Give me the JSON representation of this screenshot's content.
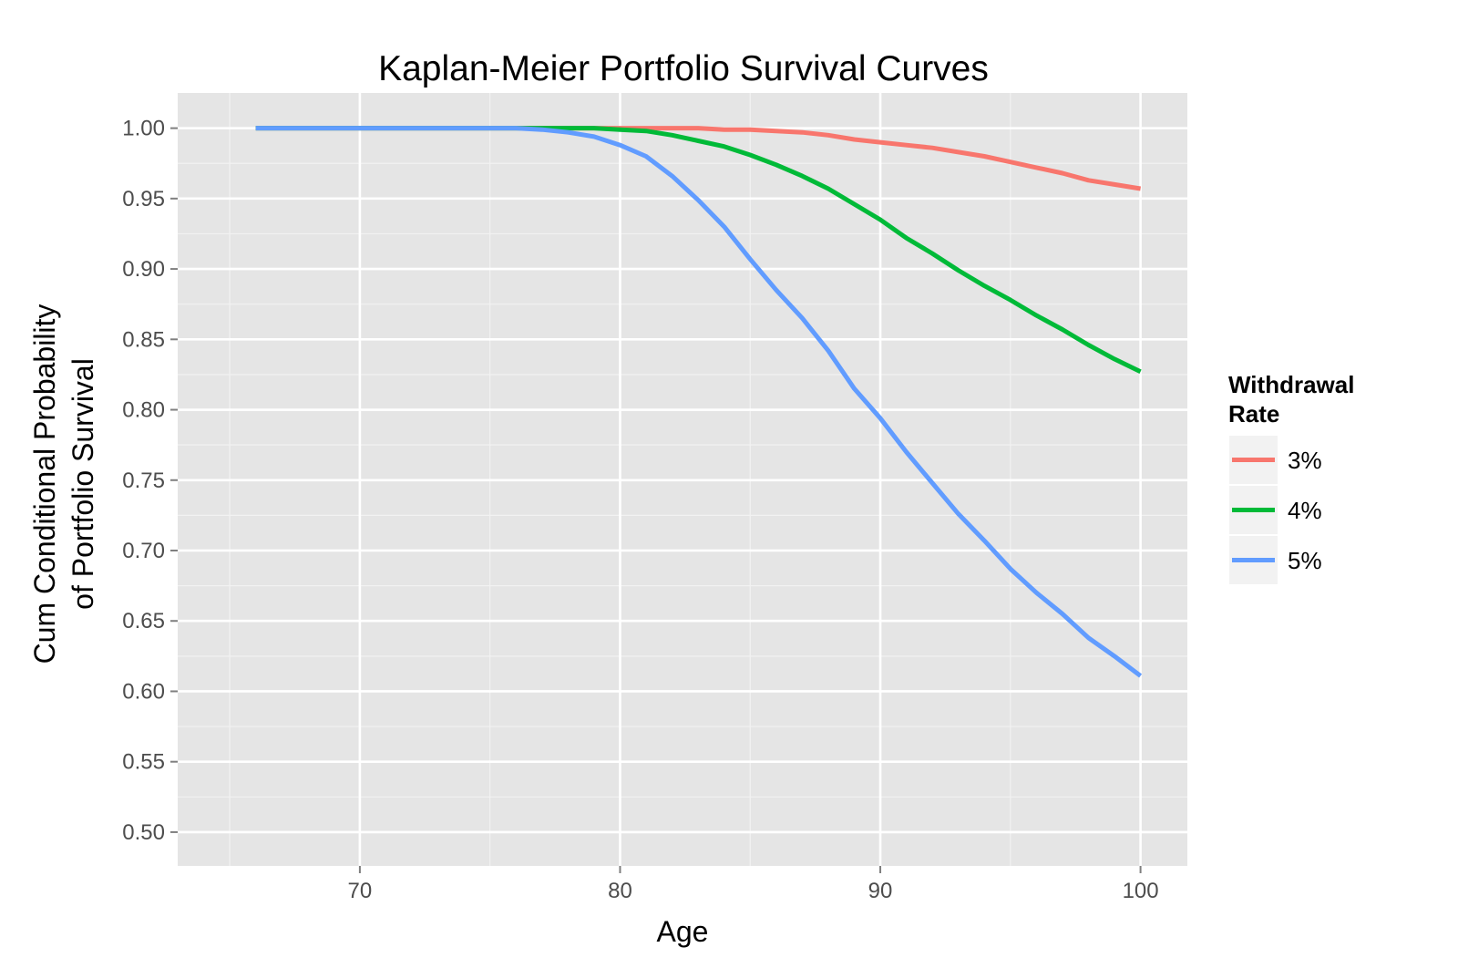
{
  "chart_data": {
    "type": "line",
    "title": "Kaplan-Meier Portfolio Survival Curves",
    "xlabel": "Age",
    "ylabel_lines": [
      "Cum Conditional Probability",
      "of Portfolio Survival"
    ],
    "xlim": [
      63,
      101.8
    ],
    "ylim": [
      0.476,
      1.025
    ],
    "x_ticks": [
      70,
      80,
      90,
      100
    ],
    "x_tick_labels": [
      "70",
      "80",
      "90",
      "100"
    ],
    "y_ticks": [
      0.5,
      0.55,
      0.6,
      0.65,
      0.7,
      0.75,
      0.8,
      0.85,
      0.9,
      0.95,
      1.0
    ],
    "y_tick_labels": [
      "0.50",
      "0.55",
      "0.60",
      "0.65",
      "0.70",
      "0.75",
      "0.80",
      "0.85",
      "0.90",
      "0.95",
      "1.00"
    ],
    "grid": true,
    "panel_background": "#e5e5e5",
    "legend": {
      "title_lines": [
        "Withdrawal",
        "Rate"
      ],
      "position": "right"
    },
    "x": [
      66,
      67,
      68,
      69,
      70,
      71,
      72,
      73,
      74,
      75,
      76,
      77,
      78,
      79,
      80,
      81,
      82,
      83,
      84,
      85,
      86,
      87,
      88,
      89,
      90,
      91,
      92,
      93,
      94,
      95,
      96,
      97,
      98,
      99,
      100
    ],
    "series": [
      {
        "name": "3%",
        "color": "#f8766d",
        "values": [
          1.0,
          1.0,
          1.0,
          1.0,
          1.0,
          1.0,
          1.0,
          1.0,
          1.0,
          1.0,
          1.0,
          1.0,
          1.0,
          1.0,
          1.0,
          1.0,
          1.0,
          1.0,
          0.999,
          0.999,
          0.998,
          0.997,
          0.995,
          0.992,
          0.99,
          0.988,
          0.986,
          0.983,
          0.98,
          0.976,
          0.972,
          0.968,
          0.963,
          0.96,
          0.957
        ]
      },
      {
        "name": "4%",
        "color": "#00ba38",
        "values": [
          1.0,
          1.0,
          1.0,
          1.0,
          1.0,
          1.0,
          1.0,
          1.0,
          1.0,
          1.0,
          1.0,
          1.0,
          1.0,
          1.0,
          0.999,
          0.998,
          0.995,
          0.991,
          0.987,
          0.981,
          0.974,
          0.966,
          0.957,
          0.946,
          0.935,
          0.922,
          0.911,
          0.899,
          0.888,
          0.878,
          0.867,
          0.857,
          0.846,
          0.836,
          0.827
        ]
      },
      {
        "name": "5%",
        "color": "#619cff",
        "values": [
          1.0,
          1.0,
          1.0,
          1.0,
          1.0,
          1.0,
          1.0,
          1.0,
          1.0,
          1.0,
          1.0,
          0.999,
          0.997,
          0.994,
          0.988,
          0.98,
          0.966,
          0.949,
          0.93,
          0.907,
          0.885,
          0.865,
          0.842,
          0.815,
          0.794,
          0.77,
          0.748,
          0.726,
          0.707,
          0.687,
          0.67,
          0.655,
          0.638,
          0.625,
          0.611
        ]
      }
    ]
  }
}
